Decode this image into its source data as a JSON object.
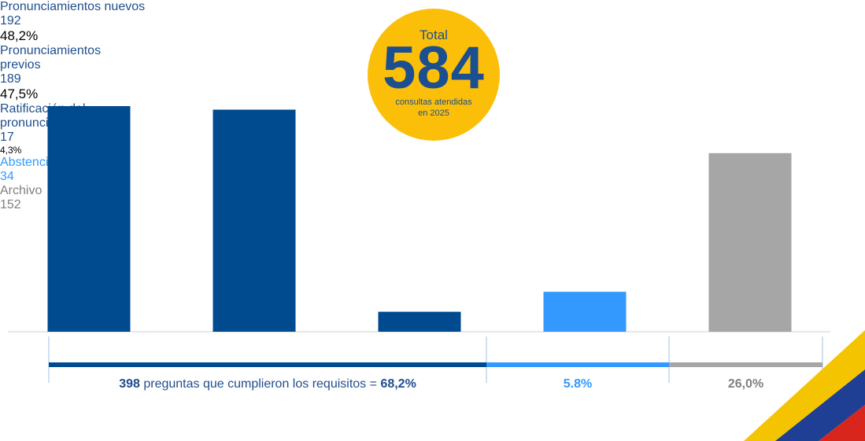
{
  "chart_data": {
    "type": "bar",
    "categories": [
      "Pronunciamientos nuevos",
      "Pronunciamientos previos",
      "Ratificación del pronunciamiento",
      "Abstenciones",
      "Archivo"
    ],
    "values": [
      192,
      189,
      17,
      34,
      152
    ],
    "colors": [
      "#004a8f",
      "#004a8f",
      "#004a8f",
      "#3399ff",
      "#a6a6a6"
    ],
    "shares": [
      "48,2%",
      "47,5%",
      "4,3%"
    ],
    "total": {
      "title": "Total",
      "value": 584,
      "caption": "consultas atendidas en 2025"
    },
    "summary": {
      "count": 398,
      "text": "preguntas que cumplieron los requisitos =",
      "percent": "68,2%",
      "segments": [
        "5.8%",
        "26,0%"
      ]
    }
  }
}
